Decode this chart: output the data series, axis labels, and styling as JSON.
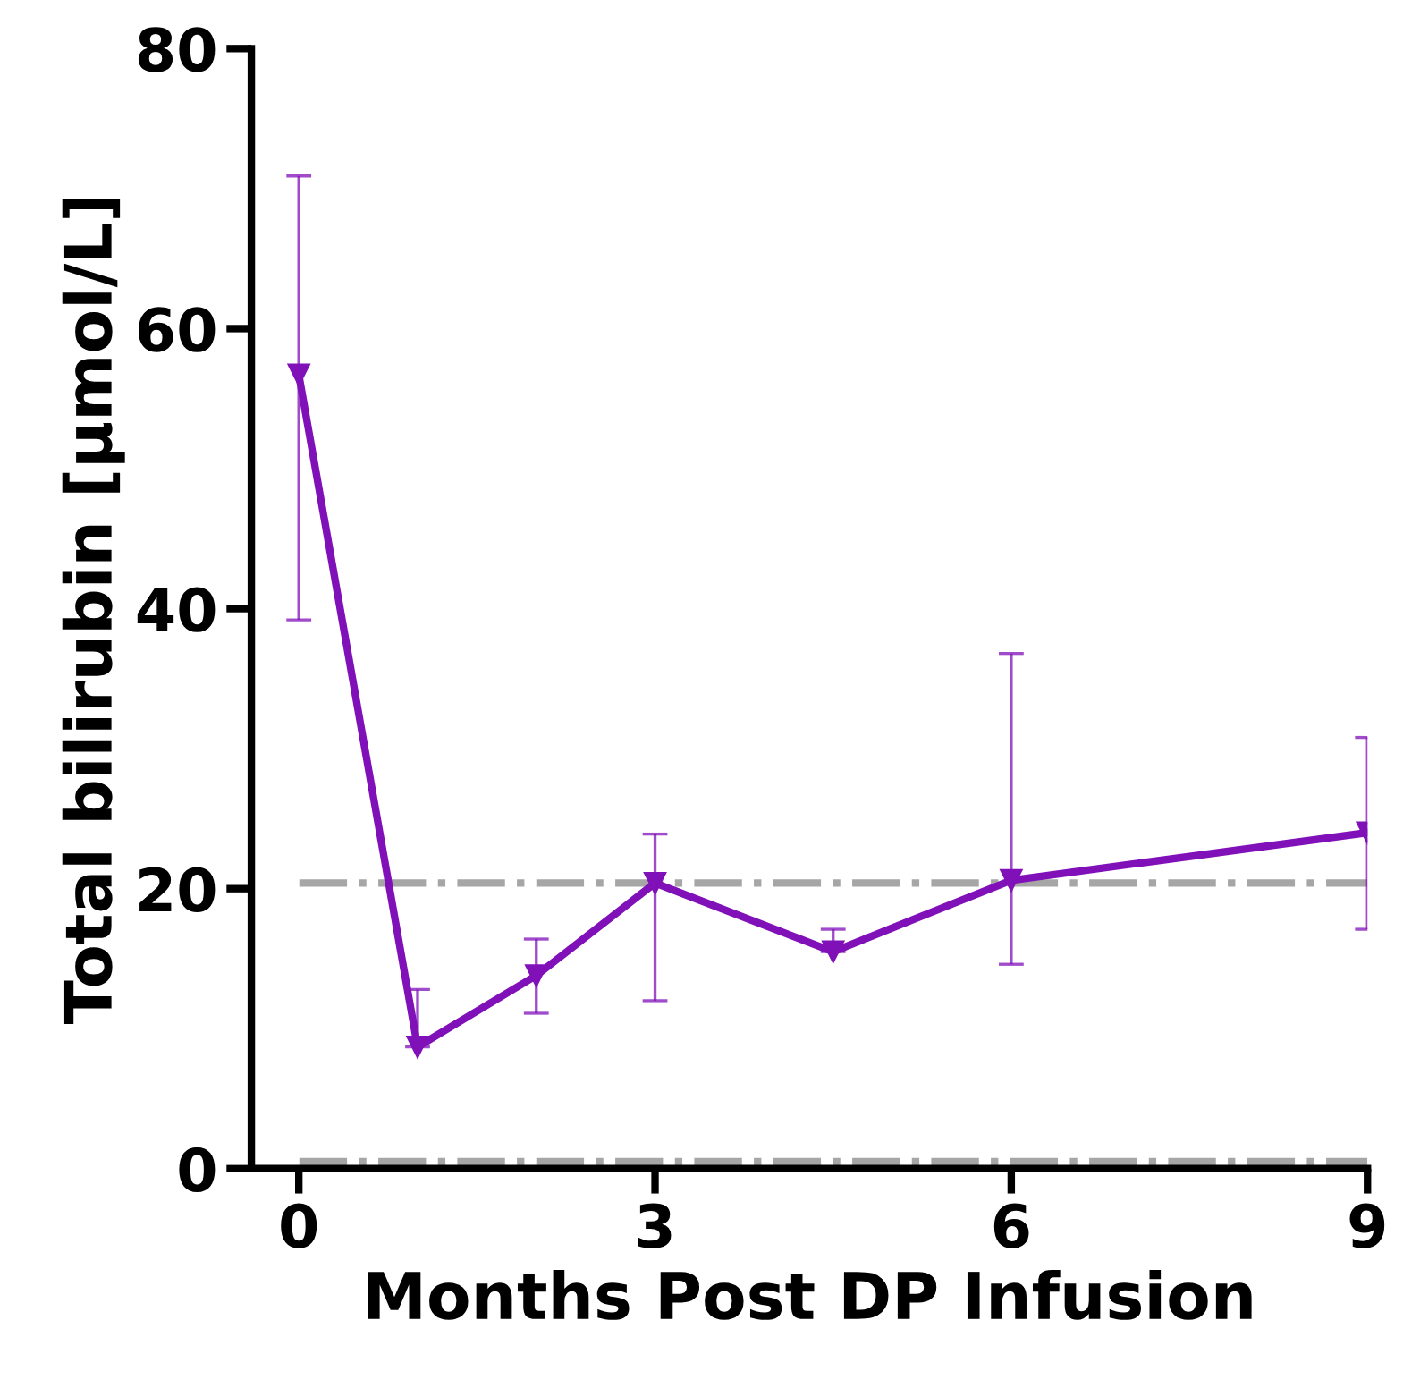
{
  "chart_data": {
    "type": "line",
    "xlabel": "Months Post DP Infusion",
    "ylabel": "Total bilirubin [μmol/L]",
    "x": [
      0,
      1,
      2,
      3,
      4.5,
      6,
      9
    ],
    "series": [
      {
        "color": "#8010b8",
        "values": [
          56.7,
          8.7,
          13.8,
          20.4,
          15.5,
          20.6,
          24.0
        ],
        "errors": [
          [
            39.2,
            70.9
          ],
          [
            8.7,
            12.8
          ],
          [
            11.1,
            16.4
          ],
          [
            12.0,
            23.9
          ],
          [
            15.5,
            17.1
          ],
          [
            14.6,
            36.8
          ],
          [
            17.1,
            30.8
          ]
        ]
      }
    ],
    "xlim": [
      -0.4,
      9
    ],
    "ylim": [
      0,
      80
    ],
    "xticks": [
      0,
      3,
      6,
      9
    ],
    "yticks": [
      0,
      20,
      40,
      60,
      80
    ],
    "ref_lines": [
      {
        "axis": "y",
        "value": 20.4,
        "color": "#a6a6a6",
        "line_style": "dashdot"
      },
      {
        "axis": "y",
        "value": 0.5,
        "color": "#a6a6a6",
        "line_style": "dashdot"
      }
    ],
    "marker": "triangle",
    "line_style": "solid",
    "grid": false,
    "legend": false
  }
}
